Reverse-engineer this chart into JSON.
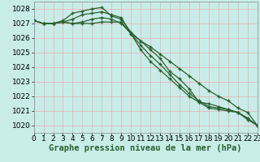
{
  "xlabel": "Graphe pression niveau de la mer (hPa)",
  "ylim": [
    1019.5,
    1028.5
  ],
  "xlim": [
    0,
    23
  ],
  "yticks": [
    1020,
    1021,
    1022,
    1023,
    1024,
    1025,
    1026,
    1027,
    1028
  ],
  "xticks": [
    0,
    1,
    2,
    3,
    4,
    5,
    6,
    7,
    8,
    9,
    10,
    11,
    12,
    13,
    14,
    15,
    16,
    17,
    18,
    19,
    20,
    21,
    22,
    23
  ],
  "background_color": "#c8ede8",
  "grid_color": "#e8b0b0",
  "line_color": "#2a6030",
  "lines": [
    [
      1027.2,
      1027.0,
      1027.0,
      1027.1,
      1027.0,
      1027.0,
      1027.0,
      1027.1,
      1027.1,
      1027.1,
      1026.3,
      1025.8,
      1025.2,
      1024.6,
      1023.7,
      1023.2,
      1022.5,
      1021.6,
      1021.5,
      1021.3,
      1021.1,
      1020.9,
      1020.5,
      1020.0
    ],
    [
      1027.2,
      1027.0,
      1027.0,
      1027.1,
      1027.0,
      1027.1,
      1027.3,
      1027.4,
      1027.3,
      1027.0,
      1026.3,
      1025.5,
      1024.8,
      1024.2,
      1023.5,
      1022.8,
      1022.2,
      1021.7,
      1021.3,
      1021.2,
      1021.1,
      1020.9,
      1020.5,
      1020.0
    ],
    [
      1027.2,
      1027.0,
      1027.0,
      1027.1,
      1027.3,
      1027.6,
      1027.7,
      1027.8,
      1027.6,
      1027.4,
      1026.3,
      1025.2,
      1024.4,
      1023.8,
      1023.2,
      1022.6,
      1022.0,
      1021.6,
      1021.2,
      1021.1,
      1021.0,
      1020.9,
      1020.4,
      1020.0
    ],
    [
      1027.2,
      1027.0,
      1027.0,
      1027.2,
      1027.7,
      1027.85,
      1028.0,
      1028.1,
      1027.5,
      1027.3,
      1026.4,
      1025.8,
      1025.4,
      1024.9,
      1024.4,
      1023.9,
      1023.4,
      1022.9,
      1022.4,
      1022.0,
      1021.7,
      1021.2,
      1020.9,
      1020.0
    ]
  ],
  "xlabel_fontsize": 7.5,
  "tick_fontsize": 6.5,
  "linewidth": 0.9,
  "markersize": 3.5
}
